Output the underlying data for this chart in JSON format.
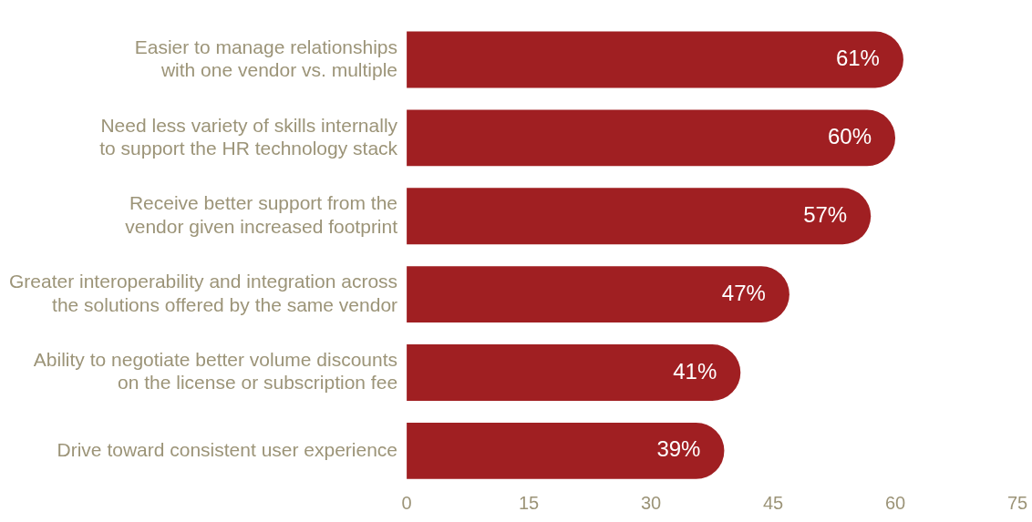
{
  "chart_data": {
    "type": "bar",
    "orientation": "horizontal",
    "categories": [
      "Easier to manage relationships with one vendor vs. multiple",
      "Need less variety of skills internally to support the HR technology stack",
      "Receive better support from the vendor given increased footprint",
      "Greater interoperability and integration across the solutions offered by the same vendor",
      "Ability to negotiate better volume discounts on the license or subscription fee",
      "Drive toward consistent user experience"
    ],
    "values": [
      61,
      60,
      57,
      47,
      41,
      39
    ],
    "value_labels": [
      "61%",
      "60%",
      "57%",
      "47%",
      "41%",
      "39%"
    ],
    "color": "#a01f22",
    "xlim": [
      0,
      75
    ],
    "xticks": [
      0,
      15,
      30,
      45,
      60,
      75
    ],
    "legend": false,
    "grid": false
  }
}
